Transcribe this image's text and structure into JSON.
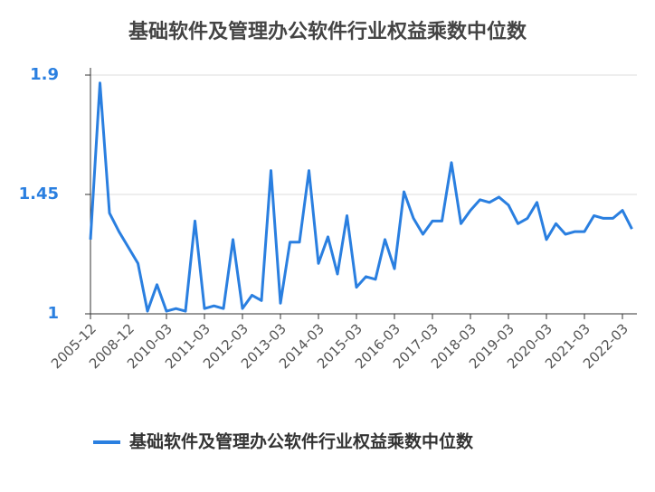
{
  "chart_data": {
    "type": "line",
    "title": "基础软件及管理办公软件行业权益乘数中位数",
    "categories": [
      "2005-12",
      null,
      null,
      null,
      "2008-12",
      null,
      null,
      null,
      "2010-03",
      null,
      null,
      null,
      "2011-03",
      null,
      null,
      null,
      "2012-03",
      null,
      null,
      null,
      "2013-03",
      null,
      null,
      null,
      "2014-03",
      null,
      null,
      null,
      "2015-03",
      null,
      null,
      null,
      "2016-03",
      null,
      null,
      null,
      "2017-03",
      null,
      null,
      null,
      "2018-03",
      null,
      null,
      null,
      "2019-03",
      null,
      null,
      null,
      "2020-03",
      null,
      null,
      null,
      "2021-03",
      null,
      null,
      null,
      "2022-03",
      null
    ],
    "series": [
      {
        "name": "基础软件及管理办公软件行业权益乘数中位数",
        "color": "#2a7fe0",
        "values": [
          1.28,
          1.87,
          1.38,
          1.31,
          1.25,
          1.19,
          1.01,
          1.11,
          1.01,
          1.02,
          1.01,
          1.35,
          1.02,
          1.03,
          1.02,
          1.28,
          1.02,
          1.07,
          1.05,
          1.54,
          1.04,
          1.27,
          1.27,
          1.54,
          1.19,
          1.29,
          1.15,
          1.37,
          1.1,
          1.14,
          1.13,
          1.28,
          1.17,
          1.46,
          1.36,
          1.3,
          1.35,
          1.35,
          1.57,
          1.34,
          1.39,
          1.43,
          1.42,
          1.44,
          1.41,
          1.34,
          1.36,
          1.42,
          1.28,
          1.34,
          1.3,
          1.31,
          1.31,
          1.37,
          1.36,
          1.36,
          1.39,
          1.32
        ]
      }
    ],
    "ylim": [
      1,
      1.9
    ],
    "yticks": [
      1,
      1.45,
      1.9
    ],
    "grid": true
  }
}
